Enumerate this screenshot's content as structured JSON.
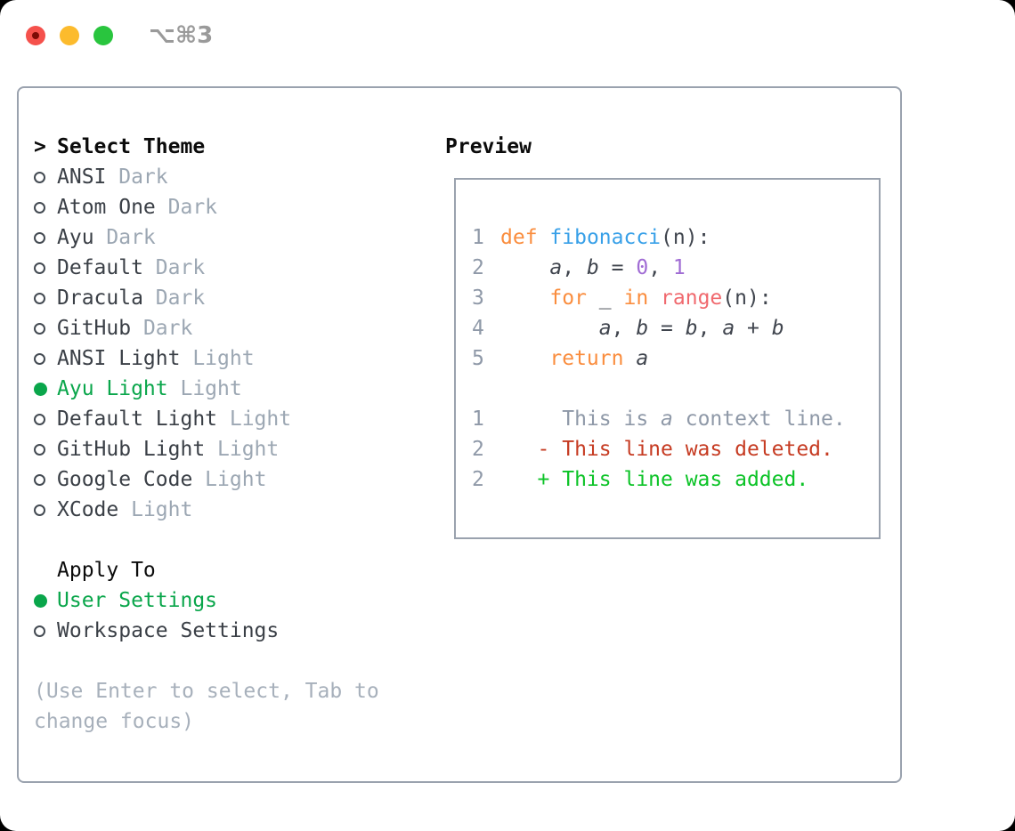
{
  "window": {
    "shortcut_label": "⌥⌘3",
    "traffic_lights": [
      "close",
      "minimize",
      "maximize"
    ]
  },
  "colors": {
    "selection_green": "#0aa64b",
    "keyword_orange": "#fa8d3e",
    "function_blue": "#38a0e8",
    "number_purple": "#a06cd4",
    "builtin_coral": "#f0696e",
    "diff_red": "#c63b22",
    "diff_green": "#0cc327",
    "muted_gray": "#9ca7b3",
    "panel_border": "#9aa2ae"
  },
  "theme_list": {
    "header_marker": ">",
    "header_label": "Select Theme",
    "items": [
      {
        "name": "ANSI",
        "tag": "Dark",
        "selected": false
      },
      {
        "name": "Atom One",
        "tag": "Dark",
        "selected": false
      },
      {
        "name": "Ayu",
        "tag": "Dark",
        "selected": false
      },
      {
        "name": "Default",
        "tag": "Dark",
        "selected": false
      },
      {
        "name": "Dracula",
        "tag": "Dark",
        "selected": false
      },
      {
        "name": "GitHub",
        "tag": "Dark",
        "selected": false
      },
      {
        "name": "ANSI Light",
        "tag": "Light",
        "selected": false
      },
      {
        "name": "Ayu Light",
        "tag": "Light",
        "selected": true
      },
      {
        "name": "Default Light",
        "tag": "Light",
        "selected": false
      },
      {
        "name": "GitHub Light",
        "tag": "Light",
        "selected": false
      },
      {
        "name": "Google Code",
        "tag": "Light",
        "selected": false
      },
      {
        "name": "XCode",
        "tag": "Light",
        "selected": false
      }
    ]
  },
  "apply_to": {
    "header_label": "Apply To",
    "options": [
      {
        "label": "User Settings",
        "selected": true
      },
      {
        "label": "Workspace Settings",
        "selected": false
      }
    ]
  },
  "help_text": "(Use Enter to select, Tab to change focus)",
  "preview": {
    "title": "Preview",
    "lines": [
      {
        "num": "1",
        "tokens": [
          {
            "t": "def",
            "s": "kw"
          },
          {
            "t": " ",
            "s": "d"
          },
          {
            "t": "fibonacci",
            "s": "fn"
          },
          {
            "t": "(n):",
            "s": "d"
          }
        ]
      },
      {
        "num": "2",
        "tokens": [
          {
            "t": "    ",
            "s": "d"
          },
          {
            "t": "a",
            "s": "v"
          },
          {
            "t": ", ",
            "s": "d"
          },
          {
            "t": "b",
            "s": "v"
          },
          {
            "t": " = ",
            "s": "d"
          },
          {
            "t": "0",
            "s": "num"
          },
          {
            "t": ", ",
            "s": "d"
          },
          {
            "t": "1",
            "s": "num"
          }
        ]
      },
      {
        "num": "3",
        "tokens": [
          {
            "t": "    ",
            "s": "d"
          },
          {
            "t": "for",
            "s": "kw"
          },
          {
            "t": " _ ",
            "s": "d"
          },
          {
            "t": "in",
            "s": "kw"
          },
          {
            "t": " ",
            "s": "d"
          },
          {
            "t": "range",
            "s": "sp"
          },
          {
            "t": "(n):",
            "s": "d"
          }
        ]
      },
      {
        "num": "4",
        "tokens": [
          {
            "t": "        ",
            "s": "d"
          },
          {
            "t": "a",
            "s": "v"
          },
          {
            "t": ", ",
            "s": "d"
          },
          {
            "t": "b",
            "s": "v"
          },
          {
            "t": " = ",
            "s": "d"
          },
          {
            "t": "b",
            "s": "v"
          },
          {
            "t": ", ",
            "s": "d"
          },
          {
            "t": "a",
            "s": "v"
          },
          {
            "t": " + ",
            "s": "d"
          },
          {
            "t": "b",
            "s": "v"
          }
        ]
      },
      {
        "num": "5",
        "tokens": [
          {
            "t": "    ",
            "s": "d"
          },
          {
            "t": "return",
            "s": "kw"
          },
          {
            "t": " ",
            "s": "d"
          },
          {
            "t": "a",
            "s": "v"
          }
        ]
      },
      {
        "num": "",
        "tokens": []
      },
      {
        "num": "1",
        "tokens": [
          {
            "t": "     This is ",
            "s": "ctx"
          },
          {
            "t": "a",
            "s": "ctxv"
          },
          {
            "t": " context line.",
            "s": "ctx"
          }
        ]
      },
      {
        "num": "2",
        "tokens": [
          {
            "t": "   - This line was deleted.",
            "s": "del"
          }
        ]
      },
      {
        "num": "2",
        "tokens": [
          {
            "t": "   + This line was added.",
            "s": "add"
          }
        ]
      }
    ]
  }
}
